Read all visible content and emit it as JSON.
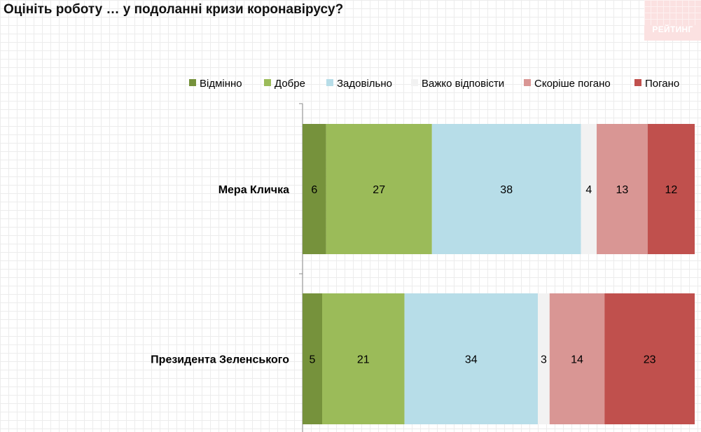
{
  "title": "Оцініть роботу … у подоланні кризи коронавірусу?",
  "logo": "РЕЙТИНГ",
  "chart_data": {
    "type": "bar",
    "orientation": "horizontal",
    "stacked": true,
    "title": "Оцініть роботу … у подоланні кризи коронавірусу?",
    "categories": [
      "Мера Кличка",
      "Президента Зеленського"
    ],
    "series": [
      {
        "name": "Відмінно",
        "color": "#76923c",
        "values": [
          6,
          5
        ]
      },
      {
        "name": "Добре",
        "color": "#9bbb59",
        "values": [
          27,
          21
        ]
      },
      {
        "name": "Задовільно",
        "color": "#b7dde8",
        "values": [
          38,
          34
        ]
      },
      {
        "name": "Важко відповісти",
        "color": "#f2f2f2",
        "values": [
          4,
          3
        ]
      },
      {
        "name": "Скоріше погано",
        "color": "#d99694",
        "values": [
          13,
          14
        ]
      },
      {
        "name": "Погано",
        "color": "#c0504d",
        "values": [
          12,
          23
        ]
      }
    ],
    "legend_position": "top-right",
    "xlim": [
      0,
      100
    ],
    "grid": true
  }
}
